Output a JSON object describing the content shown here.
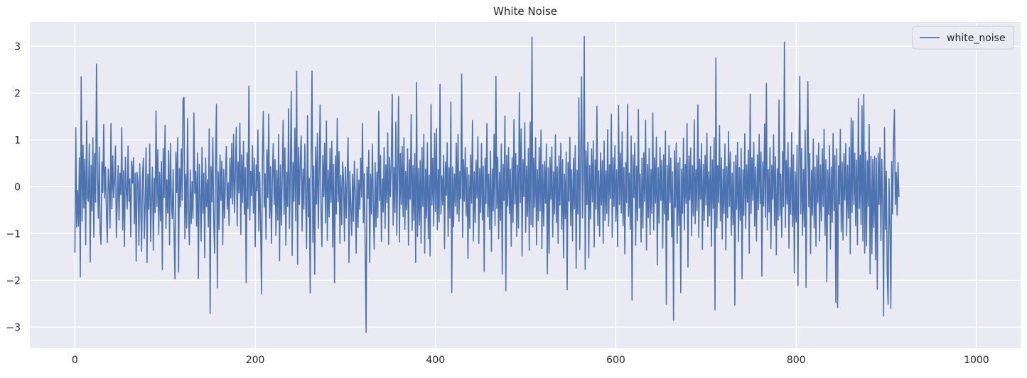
{
  "chart_data": {
    "type": "line",
    "title": "White Noise",
    "xlabel": "",
    "ylabel": "",
    "xlim": [
      -49.95,
      1048.95
    ],
    "ylim": [
      -3.45,
      3.52
    ],
    "x_ticks": [
      0,
      200,
      400,
      600,
      800,
      1000
    ],
    "x_tick_labels": [
      "0",
      "200",
      "400",
      "600",
      "800",
      "1000"
    ],
    "y_ticks": [
      -3,
      -2,
      -1,
      0,
      1,
      2,
      3
    ],
    "y_tick_labels": [
      "−3",
      "−2",
      "−1",
      "0",
      "1",
      "2",
      "3"
    ],
    "grid": true,
    "legend_position": "top-right",
    "colors": {
      "background": "#eaeaf2",
      "grid": "#ffffff",
      "line": "#4c72b0"
    },
    "series": [
      {
        "name": "white_noise",
        "x_start": 0,
        "x_step": 1,
        "values": [
          -1.41,
          1.26,
          -0.86,
          -0.08,
          -0.84,
          0.62,
          -1.93,
          2.35,
          -0.74,
          0.89,
          -0.45,
          0.59,
          -1.24,
          1.41,
          -0.24,
          -0.31,
          0.91,
          -1.61,
          0.46,
          -0.52,
          1.05,
          -1.08,
          0.71,
          -0.33,
          2.62,
          0.21,
          -0.67,
          0.85,
          -0.98,
          -1.23,
          0.53,
          -0.12,
          1.33,
          -0.24,
          0.42,
          -0.56,
          -1.19,
          0.38,
          0.05,
          -0.88,
          1.35,
          -0.47,
          0.66,
          -0.23,
          0.14,
          0.87,
          -1.08,
          -0.32,
          0.45,
          -0.71,
          0.29,
          -0.17,
          1.26,
          -0.92,
          0.34,
          -1.28,
          0.63,
          -0.05,
          -0.48,
          0.87,
          -0.31,
          0.17,
          -1.07,
          0.55,
          0.08,
          0.62,
          -0.79,
          0.29,
          -1.59,
          0.31,
          0.08,
          -1.25,
          0.49,
          -0.37,
          -1.38,
          0.25,
          0.61,
          -1.11,
          -0.35,
          0.83,
          -1.62,
          0.27,
          -0.48,
          0.91,
          -1.17,
          -0.28,
          0.42,
          -1.36,
          0.18,
          -0.55,
          1.62,
          -0.42,
          0.79,
          -1.02,
          0.31,
          -0.73,
          0.54,
          -1.77,
          0.82,
          -0.23,
          1.31,
          -0.89,
          0.15,
          -0.56,
          0.77,
          -1.24,
          0.92,
          -0.34,
          -0.68,
          0.37,
          -0.95,
          -1.97,
          0.74,
          -0.12,
          1.05,
          -1.82,
          0.39,
          -0.43,
          0.81,
          -0.29,
          1.87,
          1.91,
          -1.11,
          0.27,
          -0.88,
          1.46,
          -0.52,
          -1.24,
          0.36,
          -0.79,
          0.11,
          -0.68,
          1.58,
          -0.14,
          0.33,
          -0.84,
          0.73,
          -1.96,
          0.48,
          -0.21,
          -1.16,
          0.84,
          -0.57,
          0.29,
          -1.52,
          0.61,
          -0.43,
          0.15,
          -0.86,
          1.24,
          -2.71,
          0.43,
          -0.32,
          1.05,
          -0.74,
          -1.42,
          0.47,
          1.76,
          -2.16,
          0.32,
          -0.91,
          0.68,
          -0.29,
          0.55,
          -1.24,
          0.37,
          -0.67,
          0.18,
          0.86,
          -0.48,
          0.09,
          -0.83,
          0.61,
          -0.24,
          0.92,
          -0.37,
          1.12,
          -0.55,
          0.24,
          1.27,
          -0.84,
          0.53,
          -0.13,
          1.36,
          -1.02,
          0.68,
          -0.34,
          0.97,
          -0.59,
          0.41,
          -2.05,
          0.73,
          -0.47,
          2.15,
          -0.71,
          0.33,
          -0.19,
          0.88,
          -0.56,
          0.61,
          -1.28,
          0.47,
          -0.09,
          1.21,
          -0.95,
          0.31,
          -0.78,
          -2.29,
          0.62,
          1.61,
          -0.44,
          0.28,
          -1.12,
          0.79,
          -0.23,
          1.55,
          -0.67,
          0.43,
          -1.21,
          0.16,
          0.92,
          -0.38,
          0.58,
          -1.04,
          0.35,
          -0.71,
          1.12,
          -1.58,
          0.47,
          -0.82,
          0.24,
          1.42,
          -0.59,
          0.83,
          -1.25,
          0.31,
          -0.42,
          1.67,
          -0.89,
          0.28,
          2.04,
          -1.47,
          0.52,
          -0.31,
          1.25,
          -0.73,
          2.47,
          -1.65,
          0.84,
          -0.38,
          0.61,
          1.08,
          -0.95,
          0.38,
          -0.48,
          0.91,
          -0.27,
          -1.32,
          1.52,
          -0.64,
          0.18,
          -2.27,
          0.53,
          2.47,
          -1.19,
          0.44,
          -1.87,
          0.85,
          -0.37,
          1.14,
          -0.89,
          0.32,
          1.75,
          -0.52,
          -1.28,
          0.67,
          -0.21,
          0.93,
          -0.78,
          1.41,
          -1.15,
          0.35,
          -0.64,
          0.82,
          -0.33,
          0.97,
          -1.29,
          0.48,
          -2.05,
          0.66,
          -0.58,
          1.46,
          -0.32,
          0.75,
          -1.21,
          0.24,
          -0.81,
          0.53,
          0.12,
          -1.16,
          0.42,
          -0.67,
          0.19,
          1.05,
          -1.62,
          0.33,
          -0.43,
          -1.04,
          0.27,
          -0.74,
          0.55,
          -0.18,
          -1.42,
          0.38,
          -0.87,
          0.14,
          -0.48,
          0.61,
          -0.22,
          1.35,
          -0.77,
          0.28,
          -1.31,
          -3.11,
          0.42,
          -0.25,
          0.78,
          -1.62,
          0.27,
          -0.58,
          0.91,
          -0.41,
          -1.33,
          0.52,
          -0.86,
          0.31,
          -0.66,
          1.61,
          -0.29,
          0.67,
          -1.17,
          0.17,
          -0.54,
          0.84,
          -0.89,
          0.47,
          -0.34,
          1.15,
          -1.23,
          0.63,
          -0.21,
          0.58,
          1.97,
          -0.82,
          0.41,
          -0.55,
          1.38,
          -1.04,
          0.26,
          1.93,
          -1.18,
          0.71,
          -0.38,
          0.86,
          -0.64,
          1.05,
          -0.91,
          0.33,
          -0.49,
          0.81,
          -1.25,
          0.58,
          -0.27,
          1.54,
          -0.93,
          0.45,
          -0.72,
          0.71,
          -1.62,
          2.23,
          -1.06,
          0.39,
          -0.82,
          0.56,
          -1.21,
          0.84,
          -0.42,
          1.12,
          -1.42,
          0.38,
          -0.67,
          0.94,
          -1.11,
          0.25,
          -1.48,
          1.76,
          -0.39,
          0.61,
          -0.84,
          1.14,
          -0.53,
          1.24,
          -0.92,
          0.37,
          -0.75,
          2.19,
          -0.58,
          0.23,
          -0.39,
          0.67,
          -1.32,
          0.53,
          -0.18,
          0.94,
          -1.06,
          0.41,
          -0.67,
          1.81,
          -2.26,
          0.42,
          -0.85,
          0.27,
          -0.41,
          0.93,
          -0.58,
          1.12,
          -0.74,
          0.33,
          -0.26,
          2.41,
          -1.08,
          0.58,
          -0.31,
          0.84,
          -0.62,
          0.41,
          -1.53,
          0.25,
          -0.89,
          0.68,
          -0.35,
          1.42,
          -1.16,
          0.32,
          -0.77,
          0.57,
          -0.24,
          1.07,
          -1.21,
          0.39,
          -0.55,
          0.92,
          -0.71,
          0.44,
          -1.81,
          0.61,
          -0.36,
          1.35,
          -0.64,
          0.27,
          -0.91,
          0.76,
          -1.38,
          0.38,
          -0.52,
          1.12,
          -0.83,
          2.36,
          -0.46,
          0.63,
          -1.11,
          0.31,
          -0.72,
          0.91,
          -1.87,
          0.48,
          -0.29,
          1.51,
          -2.22,
          0.67,
          -0.41,
          0.84,
          -0.57,
          0.38,
          -1.27,
          0.62,
          -0.76,
          1.43,
          -0.37,
          0.71,
          -1.06,
          0.46,
          -0.88,
          2.01,
          -0.34,
          1.24,
          -1.48,
          0.58,
          -0.21,
          1.37,
          -0.97,
          0.44,
          -0.63,
          0.82,
          -1.36,
          1.38,
          -0.81,
          3.2,
          -0.86,
          0.61,
          -0.44,
          1.05,
          -1.24,
          0.37,
          -0.73,
          0.84,
          -0.52,
          1.21,
          -1.32,
          0.47,
          -0.84,
          0.54,
          -0.35,
          0.91,
          -1.86,
          0.41,
          -1.42,
          0.63,
          -0.27,
          0.85,
          -1.07,
          0.32,
          -0.58,
          1.11,
          -0.77,
          0.43,
          -1.21,
          0.66,
          -0.39,
          0.93,
          -0.91,
          0.58,
          -1.52,
          0.27,
          -0.68,
          0.74,
          -2.2,
          0.52,
          -0.31,
          1.06,
          -0.83,
          0.37,
          -1.16,
          0.61,
          -0.47,
          0.88,
          -1.74,
          0.35,
          -0.58,
          1.9,
          -1.34,
          0.53,
          2.35,
          -0.67,
          0.21,
          3.21,
          -1.77,
          0.77,
          -0.38,
          0.95,
          -1.52,
          0.45,
          -0.69,
          0.81,
          -0.32,
          0.98,
          -1.29,
          0.57,
          -0.48,
          1.72,
          -0.83,
          0.34,
          -1.06,
          0.73,
          -0.39,
          0.56,
          -1.21,
          0.98,
          -0.72,
          0.34,
          -0.57,
          1.22,
          -0.84,
          0.47,
          -0.25,
          1.55,
          -1.08,
          0.62,
          -0.42,
          0.88,
          -0.74,
          0.36,
          -1.28,
          1.74,
          -0.38,
          0.72,
          -0.56,
          1.17,
          -0.83,
          0.41,
          -1.43,
          0.52,
          -0.34,
          1.76,
          -0.63,
          0.29,
          -0.91,
          1.08,
          -2.42,
          0.68,
          -0.23,
          0.93,
          -1.25,
          0.44,
          -0.72,
          1.65,
          -0.45,
          0.27,
          -1.18,
          0.61,
          -0.88,
          0.73,
          -0.31,
          1.42,
          -1.35,
          0.48,
          -0.66,
          0.82,
          -1.02,
          0.37,
          -0.57,
          1.58,
          -0.92,
          0.62,
          -0.35,
          1.06,
          -1.67,
          0.41,
          -0.78,
          0.84,
          -0.29,
          0.57,
          -1.31,
          0.68,
          -0.58,
          1.19,
          -2.51,
          0.45,
          -0.71,
          0.88,
          -0.34,
          0.61,
          -1.07,
          0.32,
          -2.85,
          0.77,
          -0.44,
          0.93,
          -1.21,
          0.51,
          -0.83,
          0.62,
          -2.26,
          0.38,
          -0.57,
          1.04,
          -0.92,
          0.48,
          -0.36,
          1.35,
          -1.72,
          0.66,
          -0.28,
          0.83,
          -1.05,
          0.45,
          -0.62,
          1.43,
          -0.79,
          0.37,
          -0.51,
          1.75,
          -1.08,
          0.59,
          -0.27,
          0.92,
          -1.34,
          0.48,
          -0.72,
          0.67,
          -0.39,
          1.14,
          -0.85,
          0.32,
          -0.62,
          0.86,
          -1.27,
          0.57,
          -0.46,
          1.05,
          -2.63,
          2.75,
          -0.88,
          0.45,
          -0.34,
          1.31,
          -0.73,
          0.62,
          -1.12,
          0.38,
          -0.57,
          0.91,
          -1.35,
          0.43,
          -0.66,
          1.18,
          -0.42,
          0.74,
          -1.04,
          0.29,
          -0.81,
          0.53,
          -2.53,
          0.67,
          -0.48,
          0.95,
          -1.17,
          0.41,
          -0.72,
          0.82,
          -1.97,
          0.36,
          -0.61,
          1.13,
          -0.89,
          0.47,
          -0.33,
          0.78,
          -1.42,
          1.98,
          -0.57,
          0.62,
          -0.29,
          0.95,
          -0.84,
          0.42,
          -1.16,
          0.68,
          -0.49,
          1.12,
          -0.36,
          0.74,
          -1.91,
          0.53,
          -0.41,
          1.34,
          -0.65,
          2.21,
          -0.92,
          0.37,
          -0.54,
          0.84,
          -1.32,
          0.46,
          -0.27,
          1.11,
          -0.83,
          0.64,
          -1.46,
          0.38,
          -0.71,
          1.85,
          -0.62,
          0.27,
          -1.08,
          0.75,
          -0.43,
          3.09,
          -0.87,
          0.56,
          -0.37,
          0.94,
          -1.31,
          0.41,
          -0.59,
          1.16,
          -0.85,
          0.68,
          -1.84,
          0.32,
          -0.75,
          0.89,
          -2.11,
          0.47,
          2.36,
          -0.58,
          0.82,
          -1.04,
          0.37,
          -0.86,
          1.21,
          -2.15,
          0.53,
          2.25,
          -0.43,
          0.71,
          -1.43,
          0.35,
          -0.61,
          1.02,
          -0.88,
          0.42,
          -1.27,
          0.67,
          -0.34,
          0.93,
          -1.16,
          0.47,
          -0.73,
          0.81,
          -0.42,
          1.23,
          -1.04,
          0.58,
          -2.03,
          0.36,
          -0.59,
          0.88,
          -1.33,
          0.42,
          -0.76,
          1.14,
          -0.51,
          0.67,
          -2.47,
          0.81,
          -2.58,
          0.45,
          -0.37,
          1.23,
          -0.96,
          0.53,
          -1.14,
          0.71,
          -0.28,
          0.92,
          -1.05,
          0.46,
          -0.67,
          0.84,
          -1.43,
          1.47,
          -0.55,
          1.41,
          -0.38,
          0.72,
          -0.83,
          0.57,
          -1.24,
          1.89,
          -0.46,
          0.67,
          -0.81,
          1.73,
          -1.16,
          1.97,
          -1.42,
          0.74,
          -1.26,
          0.56,
          -0.42,
          1.33,
          -1.86,
          0.65,
          -1.43,
          0.59,
          -0.87,
          0.65,
          -1.56,
          0.61,
          -2.19,
          0.71,
          -0.38,
          0.84,
          -1.15,
          0.59,
          -0.43,
          -2.76,
          1.26,
          -0.91,
          0.33,
          -1.86,
          -2.51,
          0.17,
          -0.84,
          -2.6,
          0.54,
          -0.58,
          0.97,
          1.65,
          -0.38,
          0.31,
          -0.61,
          0.52,
          -0.22
        ]
      }
    ]
  }
}
